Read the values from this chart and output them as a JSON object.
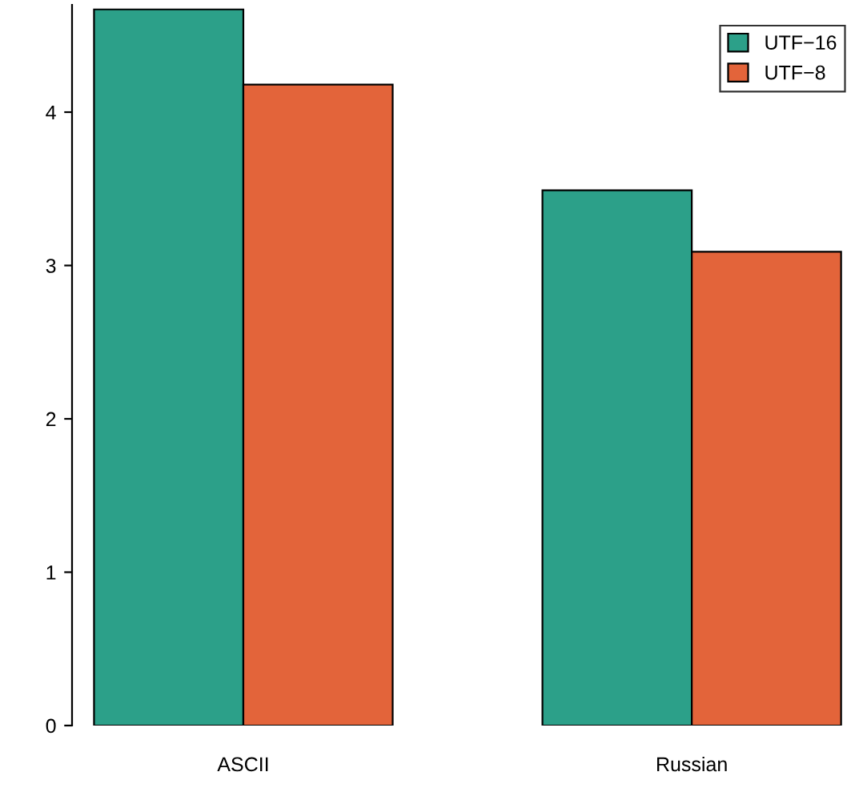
{
  "chart_data": {
    "type": "bar",
    "categories": [
      "ASCII",
      "Russian"
    ],
    "series": [
      {
        "name": "UTF−16",
        "color": "#2ca089",
        "values": [
          4.67,
          3.49
        ]
      },
      {
        "name": "UTF−8",
        "color": "#e3643a",
        "values": [
          4.18,
          3.09
        ]
      }
    ],
    "ylim": [
      0,
      4.7
    ],
    "yticks": [
      0,
      1,
      2,
      3,
      4
    ],
    "grid": false,
    "legend": "top right"
  }
}
